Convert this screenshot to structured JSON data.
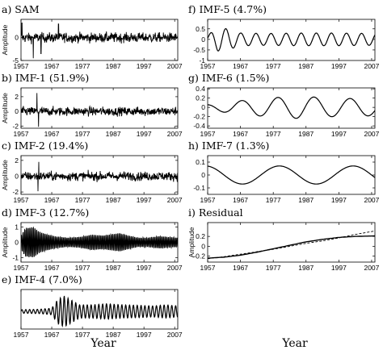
{
  "figure": {
    "xlabels": [
      "Year",
      "Year"
    ]
  },
  "chart_data": [
    {
      "type": "line",
      "title": "a) SAM",
      "ylabel": "Amplitude",
      "xlim": [
        1957,
        2008
      ],
      "ylim": [
        -5,
        4
      ],
      "xticks": [
        1957,
        1967,
        1977,
        1987,
        1997,
        2007
      ],
      "yticks": [
        -5,
        0
      ],
      "signal": {
        "kind": "noise",
        "amplitude": 1.6,
        "spikes": [
          {
            "x": 1961.0,
            "y": -4.5
          },
          {
            "x": 1963.5,
            "y": -3.5
          },
          {
            "x": 1969.2,
            "y": 3.0
          },
          {
            "x": 1957.3,
            "y": 3.2
          }
        ]
      }
    },
    {
      "type": "line",
      "title": "b) IMF-1 (51.9%)",
      "ylabel": "Amplitude",
      "xlim": [
        1957,
        2008
      ],
      "ylim": [
        -2.3,
        3.2
      ],
      "xticks": [
        1957,
        1967,
        1977,
        1987,
        1997,
        2007
      ],
      "yticks": [
        -2,
        0,
        2
      ],
      "signal": {
        "kind": "noise",
        "amplitude": 0.9,
        "spikes": [
          {
            "x": 1962.2,
            "y": 2.5
          },
          {
            "x": 1962.7,
            "y": -2.1
          }
        ]
      }
    },
    {
      "type": "line",
      "title": "c) IMF-2 (19.4%)",
      "ylabel": "Amplitude",
      "xlim": [
        1957,
        2008
      ],
      "ylim": [
        -2.3,
        2.6
      ],
      "xticks": [
        1957,
        1967,
        1977,
        1987,
        1997,
        2007
      ],
      "yticks": [
        -2,
        0,
        2
      ],
      "signal": {
        "kind": "noise",
        "amplitude": 0.85,
        "spikes": [
          {
            "x": 1962.5,
            "y": -1.9
          },
          {
            "x": 1962.8,
            "y": 1.8
          }
        ]
      }
    },
    {
      "type": "line",
      "title": "d) IMF-3 (12.7%)",
      "ylabel": "Amplitude",
      "xlim": [
        1957,
        2008
      ],
      "ylim": [
        -1.3,
        1.3
      ],
      "xticks": [
        1957,
        1967,
        1977,
        1987,
        1997,
        2007
      ],
      "yticks": [
        -1,
        0,
        1
      ],
      "signal": {
        "kind": "wave",
        "period_years": 0.55,
        "envelope": [
          [
            1957,
            0.45
          ],
          [
            1958.5,
            0.95
          ],
          [
            1961,
            1.0
          ],
          [
            1963,
            0.7
          ],
          [
            1965,
            0.55
          ],
          [
            1968,
            0.4
          ],
          [
            1972,
            0.3
          ],
          [
            1976,
            0.35
          ],
          [
            1980,
            0.5
          ],
          [
            1984,
            0.45
          ],
          [
            1987,
            0.55
          ],
          [
            1989,
            0.6
          ],
          [
            1992,
            0.45
          ],
          [
            1995,
            0.3
          ],
          [
            1998,
            0.3
          ],
          [
            2002,
            0.4
          ],
          [
            2005,
            0.35
          ],
          [
            2008,
            0.3
          ]
        ]
      }
    },
    {
      "type": "line",
      "title": "e) IMF-4 (7.0%)",
      "xlim": [
        1957,
        2008
      ],
      "ylim": [
        -0.8,
        1.0
      ],
      "xticks": [
        1957,
        1967,
        1977,
        1987,
        1997,
        2007
      ],
      "yticks": [],
      "signal": {
        "kind": "wave",
        "period_years": 1.25,
        "envelope": [
          [
            1957,
            0.08
          ],
          [
            1963,
            0.1
          ],
          [
            1967,
            0.15
          ],
          [
            1969,
            0.55
          ],
          [
            1971,
            0.7
          ],
          [
            1973,
            0.55
          ],
          [
            1976,
            0.3
          ],
          [
            1980,
            0.3
          ],
          [
            1985,
            0.35
          ],
          [
            1990,
            0.3
          ],
          [
            1995,
            0.28
          ],
          [
            2000,
            0.25
          ],
          [
            2004,
            0.3
          ],
          [
            2008,
            0.25
          ]
        ]
      }
    },
    {
      "type": "line",
      "title": "f) IMF-5 (4.7%)",
      "xlim": [
        1957,
        2008
      ],
      "ylim": [
        -1.0,
        0.95
      ],
      "xticks": [
        1957,
        1967,
        1977,
        1987,
        1997,
        2007
      ],
      "yticks": [
        -1,
        -0.5,
        0,
        0.5
      ],
      "signal": {
        "kind": "wave",
        "period_years": 4.6,
        "phase": 0.3,
        "envelope": [
          [
            1957,
            0.2
          ],
          [
            1960,
            0.55
          ],
          [
            1963,
            0.5
          ],
          [
            1967,
            0.3
          ],
          [
            1975,
            0.28
          ],
          [
            1985,
            0.3
          ],
          [
            1995,
            0.3
          ],
          [
            2008,
            0.28
          ]
        ]
      }
    },
    {
      "type": "line",
      "title": "g) IMF-6 (1.5%)",
      "xlim": [
        1957,
        2008
      ],
      "ylim": [
        -0.45,
        0.42
      ],
      "xticks": [
        1957,
        1967,
        1977,
        1987,
        1997,
        2007
      ],
      "yticks": [
        -0.4,
        -0.2,
        0,
        0.2,
        0.4
      ],
      "signal": {
        "kind": "wave",
        "period_years": 11.0,
        "phase": 1.9,
        "envelope": [
          [
            1957,
            0.06
          ],
          [
            1965,
            0.13
          ],
          [
            1975,
            0.2
          ],
          [
            1985,
            0.24
          ],
          [
            1995,
            0.2
          ],
          [
            2008,
            0.18
          ]
        ]
      }
    },
    {
      "type": "line",
      "title": "h) IMF-7 (1.3%)",
      "xlim": [
        1957,
        2008
      ],
      "ylim": [
        -0.15,
        0.15
      ],
      "xticks": [
        1957,
        1967,
        1977,
        1987,
        1997,
        2007
      ],
      "yticks": [
        -0.1,
        0,
        0.1
      ],
      "signal": {
        "kind": "wave",
        "period_years": 22.5,
        "phase": 1.75,
        "envelope": [
          [
            1957,
            0.07
          ],
          [
            2008,
            0.07
          ]
        ]
      }
    },
    {
      "type": "line",
      "title": "i) Residual",
      "ylabel": "Amplitude",
      "xlim": [
        1957,
        2008
      ],
      "ylim": [
        -0.32,
        0.48
      ],
      "xticks": [
        1957,
        1967,
        1977,
        1987,
        1997,
        2007
      ],
      "yticks": [
        -0.2,
        0,
        0.2
      ],
      "series": [
        {
          "style": "solid",
          "x": [
            1957,
            1962,
            1967,
            1972,
            1977,
            1982,
            1987,
            1992,
            1997,
            2002,
            2008
          ],
          "y": [
            -0.24,
            -0.22,
            -0.18,
            -0.12,
            -0.05,
            0.02,
            0.09,
            0.14,
            0.18,
            0.2,
            0.21
          ]
        },
        {
          "style": "dashed",
          "x": [
            1957,
            1962,
            1967,
            1972,
            1977,
            1982,
            1987,
            1992,
            1997,
            2002,
            2008
          ],
          "y": [
            -0.25,
            -0.21,
            -0.16,
            -0.11,
            -0.06,
            0.0,
            0.06,
            0.11,
            0.17,
            0.24,
            0.31
          ]
        }
      ]
    }
  ]
}
